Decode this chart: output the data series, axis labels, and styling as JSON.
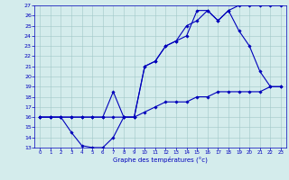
{
  "xlabel": "Graphe des températures (°c)",
  "xlim": [
    -0.5,
    23.5
  ],
  "ylim": [
    13,
    27
  ],
  "yticks": [
    13,
    14,
    15,
    16,
    17,
    18,
    19,
    20,
    21,
    22,
    23,
    24,
    25,
    26,
    27
  ],
  "xticks": [
    0,
    1,
    2,
    3,
    4,
    5,
    6,
    7,
    8,
    9,
    10,
    11,
    12,
    13,
    14,
    15,
    16,
    17,
    18,
    19,
    20,
    21,
    22,
    23
  ],
  "bg_color": "#d4ecec",
  "grid_color": "#a0c8c8",
  "line_color": "#0000bb",
  "line1_x": [
    0,
    1,
    2,
    3,
    4,
    5,
    6,
    7,
    8,
    9,
    10,
    11,
    12,
    13,
    14,
    15,
    16,
    17,
    18,
    19,
    20,
    21,
    22,
    23
  ],
  "line1_y": [
    16,
    16,
    16,
    14.5,
    13.2,
    13,
    13,
    14,
    16,
    16,
    21,
    21.5,
    23,
    23.5,
    25,
    25.5,
    26.5,
    25.5,
    26.5,
    24.5,
    23,
    20.5,
    19,
    19
  ],
  "line2_x": [
    0,
    1,
    2,
    3,
    4,
    5,
    6,
    7,
    8,
    9,
    10,
    11,
    12,
    13,
    14,
    15,
    16,
    17,
    18,
    19,
    20,
    21,
    22,
    23
  ],
  "line2_y": [
    16,
    16,
    16,
    16,
    16,
    16,
    16,
    18.5,
    16,
    16,
    21,
    21.5,
    23,
    23.5,
    24,
    26.5,
    26.5,
    25.5,
    26.5,
    27,
    27,
    27,
    27,
    27
  ],
  "line3_x": [
    0,
    1,
    2,
    3,
    4,
    5,
    6,
    7,
    8,
    9,
    10,
    11,
    12,
    13,
    14,
    15,
    16,
    17,
    18,
    19,
    20,
    21,
    22,
    23
  ],
  "line3_y": [
    16,
    16,
    16,
    16,
    16,
    16,
    16,
    16,
    16,
    16,
    16.5,
    17,
    17.5,
    17.5,
    17.5,
    18,
    18,
    18.5,
    18.5,
    18.5,
    18.5,
    18.5,
    19,
    19
  ]
}
